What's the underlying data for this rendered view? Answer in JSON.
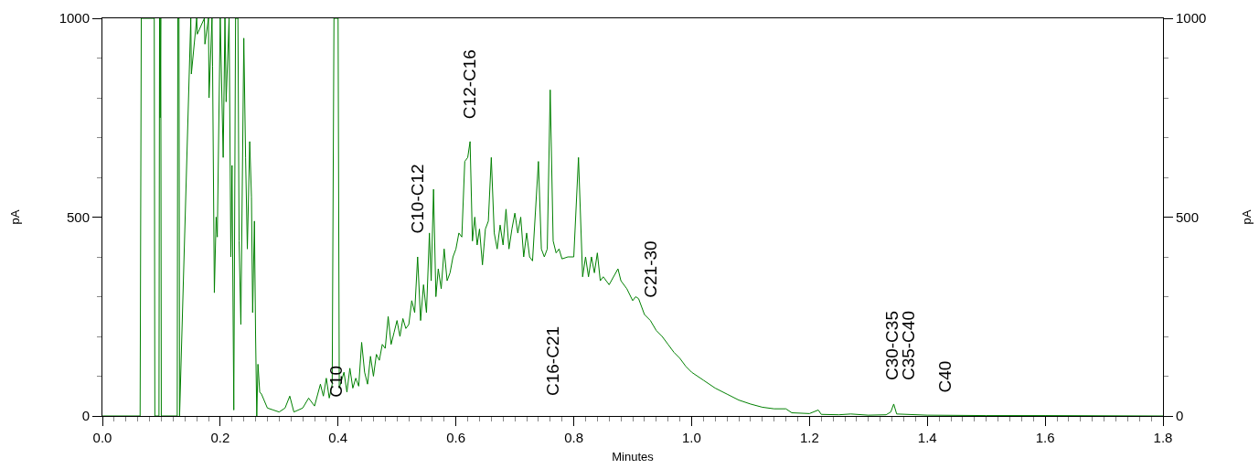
{
  "chart_data": {
    "type": "line",
    "xlabel": "Minutes",
    "ylabel": "pA",
    "y2label": "pA",
    "color": "#008000",
    "grid": false,
    "marker": "none",
    "line_style": "solid",
    "xlim": [
      0,
      1.8
    ],
    "xticks": [
      {
        "value": 0,
        "label": "0.0"
      },
      {
        "value": 0.2,
        "label": "0.2"
      },
      {
        "value": 0.4,
        "label": "0.4"
      },
      {
        "value": 0.6,
        "label": "0.6"
      },
      {
        "value": 0.8,
        "label": "0.8"
      },
      {
        "value": 1,
        "label": "1.0"
      },
      {
        "value": 1.2,
        "label": "1.2"
      },
      {
        "value": 1.4,
        "label": "1.4"
      },
      {
        "value": 1.6,
        "label": "1.6"
      },
      {
        "value": 1.8,
        "label": "1.8"
      }
    ],
    "ylim": [
      0,
      1000
    ],
    "yticks": [
      0,
      500,
      1000
    ],
    "y2lim": [
      0,
      1000
    ],
    "y2ticks": [
      0,
      500,
      1000
    ],
    "x": [
      0,
      0.064,
      0.066,
      0.088,
      0.089,
      0.096,
      0.097,
      0.098,
      0.099,
      0.1,
      0.127,
      0.128,
      0.13,
      0.131,
      0.15,
      0.151,
      0.16,
      0.161,
      0.173,
      0.174,
      0.18,
      0.181,
      0.186,
      0.187,
      0.19,
      0.193,
      0.195,
      0.2,
      0.205,
      0.208,
      0.21,
      0.215,
      0.218,
      0.22,
      0.223,
      0.226,
      0.23,
      0.232,
      0.235,
      0.24,
      0.243,
      0.246,
      0.25,
      0.253,
      0.255,
      0.258,
      0.26,
      0.262,
      0.264,
      0.267,
      0.27,
      0.28,
      0.29,
      0.3,
      0.31,
      0.318,
      0.325,
      0.34,
      0.35,
      0.36,
      0.37,
      0.375,
      0.38,
      0.385,
      0.39,
      0.393,
      0.4,
      0.402,
      0.41,
      0.415,
      0.42,
      0.425,
      0.43,
      0.435,
      0.44,
      0.445,
      0.45,
      0.455,
      0.46,
      0.465,
      0.47,
      0.475,
      0.48,
      0.485,
      0.49,
      0.495,
      0.5,
      0.505,
      0.51,
      0.515,
      0.52,
      0.525,
      0.53,
      0.535,
      0.54,
      0.545,
      0.55,
      0.555,
      0.558,
      0.562,
      0.566,
      0.57,
      0.575,
      0.58,
      0.585,
      0.59,
      0.595,
      0.6,
      0.605,
      0.61,
      0.615,
      0.62,
      0.624,
      0.628,
      0.632,
      0.636,
      0.64,
      0.645,
      0.65,
      0.655,
      0.66,
      0.665,
      0.67,
      0.675,
      0.68,
      0.685,
      0.69,
      0.695,
      0.7,
      0.705,
      0.71,
      0.715,
      0.72,
      0.725,
      0.73,
      0.74,
      0.745,
      0.75,
      0.755,
      0.76,
      0.765,
      0.77,
      0.775,
      0.78,
      0.79,
      0.8,
      0.808,
      0.815,
      0.82,
      0.825,
      0.83,
      0.835,
      0.84,
      0.845,
      0.85,
      0.86,
      0.875,
      0.88,
      0.89,
      0.9,
      0.905,
      0.91,
      0.92,
      0.93,
      0.94,
      0.95,
      0.96,
      0.97,
      0.98,
      0.99,
      1,
      1.02,
      1.04,
      1.06,
      1.08,
      1.1,
      1.12,
      1.14,
      1.16,
      1.17,
      1.2,
      1.215,
      1.22,
      1.25,
      1.27,
      1.3,
      1.33,
      1.338,
      1.343,
      1.348,
      1.4,
      1.5,
      1.6,
      1.8
    ],
    "values": [
      0,
      0,
      1000,
      1000,
      0,
      0,
      1000,
      750,
      1000,
      0,
      0,
      1000,
      1000,
      0,
      1000,
      860,
      1000,
      960,
      1000,
      935,
      1000,
      800,
      1000,
      880,
      310,
      500,
      450,
      1000,
      650,
      1000,
      790,
      1000,
      400,
      630,
      15,
      1000,
      1000,
      440,
      230,
      950,
      650,
      420,
      690,
      550,
      260,
      490,
      200,
      0,
      130,
      60,
      55,
      20,
      15,
      10,
      20,
      50,
      10,
      20,
      45,
      25,
      80,
      50,
      95,
      45,
      80,
      1000,
      1000,
      70,
      110,
      60,
      120,
      70,
      95,
      75,
      185,
      110,
      80,
      150,
      100,
      155,
      140,
      180,
      170,
      250,
      180,
      210,
      240,
      200,
      245,
      220,
      230,
      290,
      260,
      400,
      240,
      330,
      260,
      460,
      340,
      570,
      300,
      370,
      320,
      420,
      340,
      360,
      400,
      420,
      460,
      450,
      640,
      650,
      690,
      440,
      500,
      430,
      470,
      380,
      470,
      490,
      650,
      460,
      420,
      480,
      430,
      520,
      420,
      470,
      510,
      460,
      500,
      400,
      460,
      400,
      390,
      640,
      420,
      400,
      420,
      820,
      440,
      410,
      420,
      395,
      400,
      400,
      650,
      350,
      400,
      350,
      400,
      360,
      410,
      340,
      350,
      330,
      370,
      340,
      320,
      290,
      300,
      295,
      255,
      240,
      215,
      200,
      180,
      160,
      145,
      125,
      110,
      90,
      70,
      55,
      40,
      30,
      22,
      18,
      18,
      8,
      6,
      15,
      4,
      3,
      5,
      2,
      3,
      10,
      30,
      5,
      2,
      1,
      1,
      0
    ],
    "annotations": [
      "C10",
      "C10-C12",
      "C12-C16",
      "C16-C21",
      "C21-30",
      "C30-C35",
      "C35-C40",
      "C40"
    ]
  }
}
